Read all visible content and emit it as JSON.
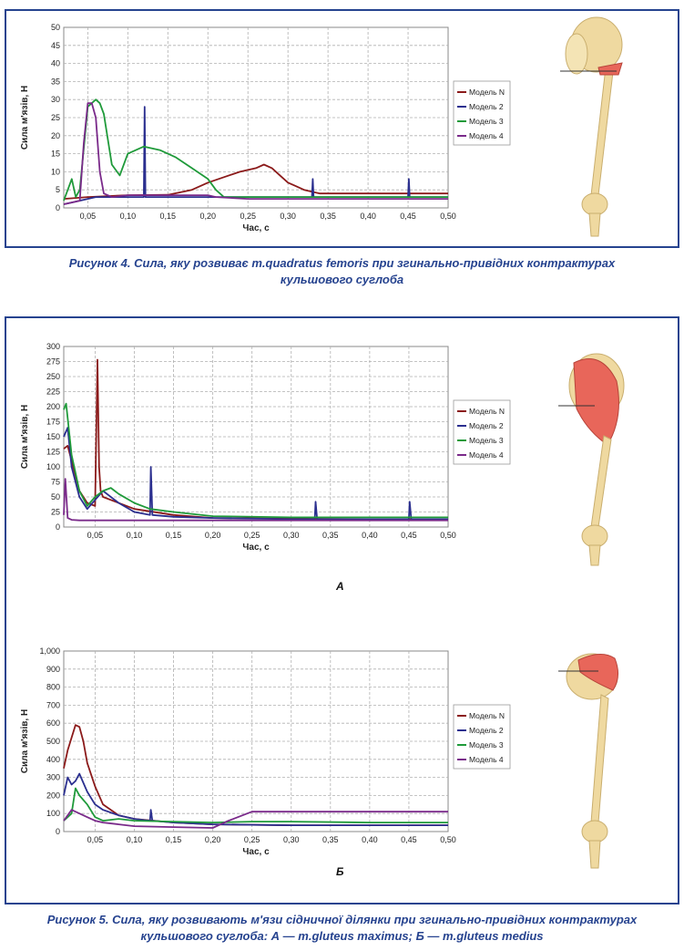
{
  "figure4": {
    "caption_line1": "Рисунок 4. Сила, яку розвиває m.quadratus femoris при згинально-привідних контрактурах",
    "caption_line2": "кульшового суглоба"
  },
  "figure5": {
    "caption_line1": "Рисунок 5. Сила, яку розвивають м'язи сідничної ділянки при згинально-привідних контрактурах",
    "caption_line2": "кульшового суглоба: А — m.gluteus maximus; Б — m.gluteus medius",
    "label_a": "А",
    "label_b": "Б"
  },
  "colors": {
    "frame": "#26438f",
    "model_n": "#8b1a1a",
    "model_2": "#2b2f8f",
    "model_3": "#1f9a3a",
    "model_4": "#7a2a8a",
    "bone": "#efd9a0",
    "muscle": "#e8665a"
  },
  "chart_data": [
    {
      "type": "line",
      "xlabel": "Час, с",
      "ylabel": "Сила м'язів, Н",
      "xlim": [
        0.02,
        0.5
      ],
      "ylim": [
        0,
        50
      ],
      "xticks": [
        "0,05",
        "0,10",
        "0,15",
        "0,20",
        "0,25",
        "0,30",
        "0,35",
        "0,40",
        "0,45",
        "0,50"
      ],
      "yticks": [
        "0",
        "5",
        "10",
        "15",
        "20",
        "25",
        "30",
        "35",
        "40",
        "45",
        "50"
      ],
      "grid": true,
      "legend_position": "right",
      "series": [
        {
          "name": "Модель N",
          "x": [
            0.02,
            0.05,
            0.1,
            0.15,
            0.18,
            0.2,
            0.22,
            0.24,
            0.26,
            0.27,
            0.28,
            0.29,
            0.3,
            0.31,
            0.32,
            0.33,
            0.34,
            0.4,
            0.45,
            0.5
          ],
          "y": [
            2.5,
            3,
            3.5,
            3.6,
            5,
            7,
            8.5,
            10,
            11,
            12,
            11,
            9,
            7,
            6,
            5,
            4.5,
            4,
            4,
            4,
            4
          ]
        },
        {
          "name": "Модель 2",
          "x": [
            0.02,
            0.03,
            0.04,
            0.05,
            0.06,
            0.08,
            0.1,
            0.12,
            0.121,
            0.122,
            0.15,
            0.2,
            0.3,
            0.33,
            0.331,
            0.332,
            0.4,
            0.45,
            0.451,
            0.452,
            0.5
          ],
          "y": [
            1,
            1.5,
            2,
            2.5,
            3,
            3,
            3,
            3,
            28,
            3,
            3,
            3,
            3,
            3,
            8,
            3,
            3,
            3,
            8,
            3,
            3
          ]
        },
        {
          "name": "Модель 3",
          "x": [
            0.02,
            0.03,
            0.035,
            0.04,
            0.05,
            0.06,
            0.065,
            0.07,
            0.08,
            0.09,
            0.1,
            0.12,
            0.14,
            0.16,
            0.18,
            0.2,
            0.21,
            0.22,
            0.25,
            0.3,
            0.4,
            0.5
          ],
          "y": [
            2,
            8,
            3,
            5,
            28,
            30,
            29,
            26,
            12,
            9,
            15,
            17,
            16,
            14,
            11,
            8,
            5,
            3,
            3,
            3,
            3,
            3
          ]
        },
        {
          "name": "Модель 4",
          "x": [
            0.02,
            0.04,
            0.045,
            0.05,
            0.055,
            0.06,
            0.065,
            0.07,
            0.08,
            0.1,
            0.15,
            0.2,
            0.21,
            0.25,
            0.3,
            0.4,
            0.5
          ],
          "y": [
            1,
            2,
            18,
            29,
            29,
            25,
            10,
            4,
            3,
            3.5,
            3.5,
            3.5,
            3,
            2.5,
            2.5,
            2.5,
            2.5
          ]
        }
      ]
    },
    {
      "type": "line",
      "xlabel": "Час, с",
      "ylabel": "Сила м'язів, Н",
      "xlim": [
        0.01,
        0.5
      ],
      "ylim": [
        0,
        300
      ],
      "xticks": [
        "0,05",
        "0,10",
        "0,15",
        "0,20",
        "0,25",
        "0,30",
        "0,35",
        "0,40",
        "0,45",
        "0,50"
      ],
      "yticks": [
        "0",
        "25",
        "50",
        "75",
        "100",
        "125",
        "150",
        "175",
        "200",
        "225",
        "250",
        "275",
        "300"
      ],
      "grid": true,
      "legend_position": "right",
      "series": [
        {
          "name": "Модель N",
          "x": [
            0.01,
            0.015,
            0.02,
            0.03,
            0.04,
            0.05,
            0.053,
            0.055,
            0.057,
            0.06,
            0.07,
            0.1,
            0.15,
            0.2,
            0.3,
            0.4,
            0.5
          ],
          "y": [
            130,
            135,
            110,
            60,
            40,
            35,
            278,
            100,
            60,
            50,
            45,
            30,
            20,
            15,
            14,
            13,
            13
          ]
        },
        {
          "name": "Модель 2",
          "x": [
            0.01,
            0.015,
            0.02,
            0.03,
            0.04,
            0.05,
            0.06,
            0.08,
            0.1,
            0.12,
            0.121,
            0.123,
            0.15,
            0.2,
            0.3,
            0.33,
            0.331,
            0.333,
            0.4,
            0.45,
            0.451,
            0.453,
            0.5
          ],
          "y": [
            150,
            165,
            100,
            50,
            30,
            45,
            60,
            40,
            25,
            20,
            100,
            20,
            17,
            15,
            13,
            13,
            42,
            13,
            13,
            13,
            42,
            13,
            13
          ]
        },
        {
          "name": "Модель 3",
          "x": [
            0.01,
            0.013,
            0.02,
            0.03,
            0.04,
            0.05,
            0.06,
            0.07,
            0.08,
            0.1,
            0.12,
            0.15,
            0.2,
            0.3,
            0.5
          ],
          "y": [
            195,
            205,
            120,
            60,
            35,
            50,
            60,
            65,
            55,
            40,
            30,
            25,
            18,
            16,
            16
          ]
        },
        {
          "name": "Модель 4",
          "x": [
            0.01,
            0.012,
            0.015,
            0.02,
            0.03,
            0.05,
            0.1,
            0.2,
            0.3,
            0.4,
            0.5
          ],
          "y": [
            20,
            80,
            15,
            12,
            11,
            11,
            11,
            11,
            11,
            11,
            11
          ]
        }
      ]
    },
    {
      "type": "line",
      "xlabel": "Час, с",
      "ylabel": "Сила м'язів, Н",
      "xlim": [
        0.01,
        0.5
      ],
      "ylim": [
        0,
        1000
      ],
      "xticks": [
        "0,05",
        "0,10",
        "0,15",
        "0,20",
        "0,25",
        "0,30",
        "0,35",
        "0,40",
        "0,45",
        "0,50"
      ],
      "yticks": [
        "0",
        "100",
        "200",
        "300",
        "400",
        "500",
        "600",
        "700",
        "800",
        "900",
        "1,000"
      ],
      "grid": true,
      "legend_position": "right",
      "series": [
        {
          "name": "Модель N",
          "x": [
            0.01,
            0.015,
            0.02,
            0.025,
            0.03,
            0.035,
            0.04,
            0.05,
            0.06,
            0.08,
            0.1,
            0.15,
            0.2,
            0.3,
            0.4,
            0.5
          ],
          "y": [
            350,
            450,
            520,
            590,
            580,
            500,
            380,
            250,
            150,
            90,
            70,
            50,
            40,
            35,
            35,
            35
          ]
        },
        {
          "name": "Модель 2",
          "x": [
            0.01,
            0.015,
            0.02,
            0.025,
            0.03,
            0.035,
            0.04,
            0.05,
            0.06,
            0.08,
            0.1,
            0.12,
            0.121,
            0.123,
            0.15,
            0.2,
            0.3,
            0.4,
            0.5
          ],
          "y": [
            200,
            300,
            260,
            280,
            320,
            270,
            220,
            150,
            120,
            90,
            70,
            60,
            120,
            60,
            50,
            40,
            35,
            35,
            35
          ]
        },
        {
          "name": "Модель 3",
          "x": [
            0.01,
            0.015,
            0.02,
            0.025,
            0.03,
            0.04,
            0.05,
            0.06,
            0.08,
            0.1,
            0.15,
            0.2,
            0.25,
            0.3,
            0.4,
            0.5
          ],
          "y": [
            60,
            80,
            100,
            240,
            200,
            150,
            80,
            60,
            70,
            60,
            55,
            50,
            55,
            55,
            50,
            50
          ]
        },
        {
          "name": "Модель 4",
          "x": [
            0.01,
            0.02,
            0.03,
            0.04,
            0.05,
            0.06,
            0.08,
            0.1,
            0.15,
            0.2,
            0.22,
            0.25,
            0.3,
            0.4,
            0.5
          ],
          "y": [
            60,
            120,
            100,
            80,
            60,
            50,
            40,
            30,
            25,
            20,
            60,
            110,
            110,
            110,
            110
          ]
        }
      ]
    }
  ]
}
